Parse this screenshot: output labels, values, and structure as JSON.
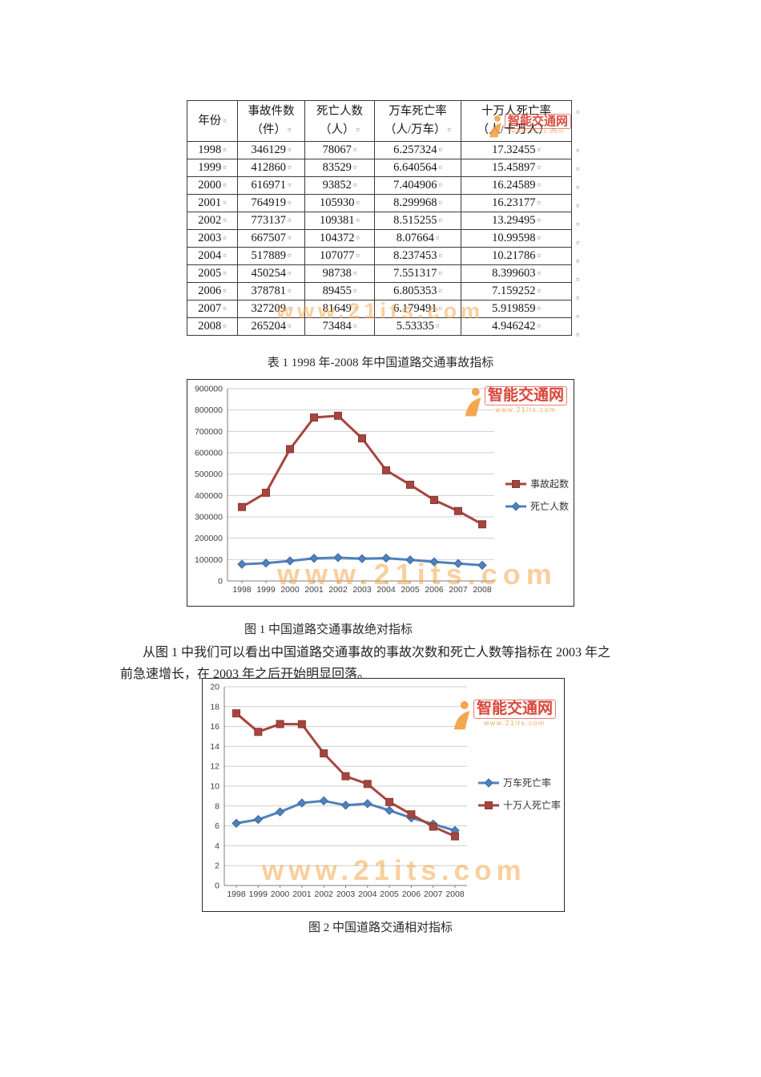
{
  "watermark": {
    "brand_text": "智能交通网",
    "brand_url": "www.21its.com",
    "big_url": "www.21its.com",
    "brand_color": "#d6372a",
    "orange": "#f2a043"
  },
  "table": {
    "caption": "表 1 1998 年-2008 年中国道路交通事故指标",
    "return_mark": "¤",
    "headers": [
      [
        "年份",
        ""
      ],
      [
        "事故件数",
        "（件）"
      ],
      [
        "死亡人数",
        "（人）"
      ],
      [
        "万车死亡率",
        "（人/万车）"
      ],
      [
        "十万人死亡率",
        "（人/十万人）"
      ]
    ],
    "rows": [
      [
        "1998",
        "346129",
        "78067",
        "6.257324",
        "17.32455"
      ],
      [
        "1999",
        "412860",
        "83529",
        "6.640564",
        "15.45897"
      ],
      [
        "2000",
        "616971",
        "93852",
        "7.404906",
        "16.24589"
      ],
      [
        "2001",
        "764919",
        "105930",
        "8.299968",
        "16.23177"
      ],
      [
        "2002",
        "773137",
        "109381",
        "8.515255",
        "13.29495"
      ],
      [
        "2003",
        "667507",
        "104372",
        "8.07664",
        "10.99598"
      ],
      [
        "2004",
        "517889",
        "107077",
        "8.237453",
        "10.21786"
      ],
      [
        "2005",
        "450254",
        "98738",
        "7.551317",
        "8.399603"
      ],
      [
        "2006",
        "378781",
        "89455",
        "6.805353",
        "7.159252"
      ],
      [
        "2007",
        "327209",
        "81649",
        "6.179491",
        "5.919859"
      ],
      [
        "2008",
        "265204",
        "73484",
        "5.53335",
        "4.946242"
      ]
    ]
  },
  "figure1": {
    "caption": "图 1 中国道路交通事故绝对指标"
  },
  "figure2": {
    "caption": "图 2 中国道路交通相对指标"
  },
  "paragraph": {
    "lines": [
      "从图 1 中我们可以看出中国道路交通事故的事故次数和死亡人数等指标在 2003 年之",
      "前急速增长，在 2003 年之后开始明显回落。"
    ]
  },
  "chart_data": [
    {
      "type": "line",
      "title": "图 1 中国道路交通事故绝对指标",
      "x": [
        1998,
        1999,
        2000,
        2001,
        2002,
        2003,
        2004,
        2005,
        2006,
        2007,
        2008
      ],
      "series": [
        {
          "name": "事故起数",
          "color": "#a6453e",
          "marker": "square",
          "values": [
            346129,
            412860,
            616971,
            764919,
            773137,
            667507,
            517889,
            450254,
            378781,
            327209,
            265204
          ]
        },
        {
          "name": "死亡人数",
          "color": "#4f81bd",
          "marker": "diamond",
          "values": [
            78067,
            83529,
            93852,
            105930,
            109381,
            104372,
            107077,
            98738,
            89455,
            81649,
            73484
          ]
        }
      ],
      "ylim": [
        0,
        900000
      ],
      "ytick_step": 100000,
      "grid": true,
      "legend_position": "right"
    },
    {
      "type": "line",
      "title": "图 2 中国道路交通相对指标",
      "x": [
        1998,
        1999,
        2000,
        2001,
        2002,
        2003,
        2004,
        2005,
        2006,
        2007,
        2008
      ],
      "series": [
        {
          "name": "万车死亡率",
          "color": "#4f81bd",
          "marker": "diamond",
          "values": [
            6.257324,
            6.640564,
            7.404906,
            8.299968,
            8.515255,
            8.07664,
            8.237453,
            7.551317,
            6.805353,
            6.179491,
            5.53335
          ]
        },
        {
          "name": "十万人死亡率",
          "color": "#a6453e",
          "marker": "square",
          "values": [
            17.32455,
            15.45897,
            16.24589,
            16.23177,
            13.29495,
            10.99598,
            10.21786,
            8.399603,
            7.159252,
            5.919859,
            4.946242
          ]
        }
      ],
      "ylim": [
        0,
        20
      ],
      "ytick_step": 2,
      "grid": true,
      "legend_position": "right"
    }
  ]
}
